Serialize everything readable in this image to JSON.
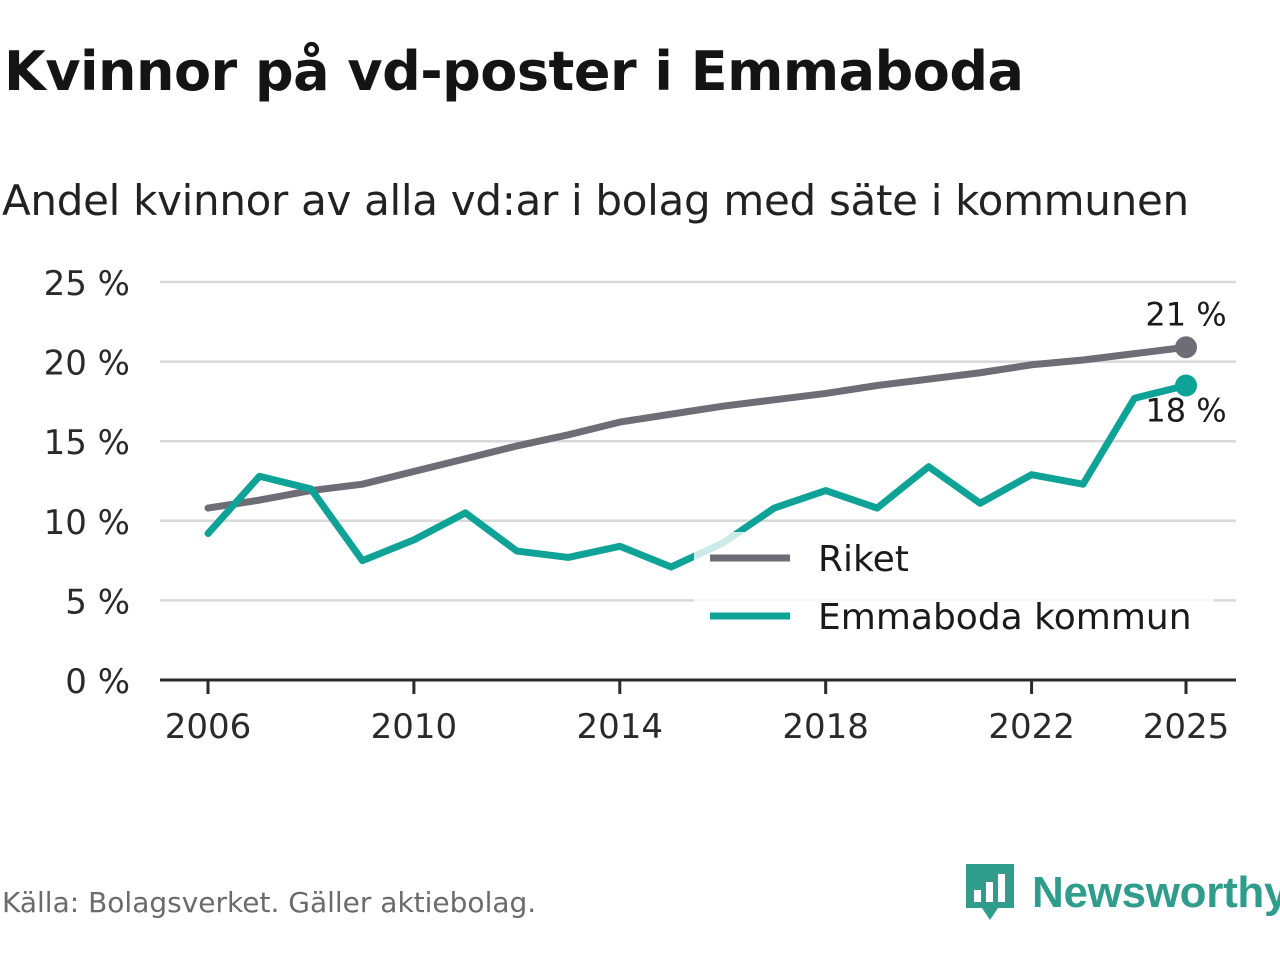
{
  "title": "Kvinnor på vd-poster i Emmaboda",
  "subtitle": "Andel kvinnor av alla vd:ar i bolag med säte i kommunen",
  "source": "Källa: Bolagsverket. Gäller aktiebolag.",
  "brand": "Newsworthy",
  "colors": {
    "riket": "#6e6d76",
    "kommun": "#0fa398",
    "brand": "#2f9c8c"
  },
  "chart_data": {
    "type": "line",
    "x": [
      2006,
      2007,
      2008,
      2009,
      2010,
      2011,
      2012,
      2013,
      2014,
      2015,
      2016,
      2017,
      2018,
      2019,
      2020,
      2021,
      2022,
      2023,
      2024,
      2025
    ],
    "series": [
      {
        "name": "Riket",
        "color": "#6e6d76",
        "values": [
          10.8,
          11.3,
          11.9,
          12.3,
          13.1,
          13.9,
          14.7,
          15.4,
          16.2,
          16.7,
          17.2,
          17.6,
          18.0,
          18.5,
          18.9,
          19.3,
          19.8,
          20.1,
          20.5,
          20.9
        ],
        "end_label": "21 %"
      },
      {
        "name": "Emmaboda kommun",
        "color": "#0fa398",
        "values": [
          9.2,
          12.8,
          12.0,
          7.5,
          8.8,
          10.5,
          8.1,
          7.7,
          8.4,
          7.1,
          8.6,
          10.8,
          11.9,
          10.8,
          13.4,
          11.1,
          12.9,
          12.3,
          17.7,
          18.5
        ],
        "end_label": "18 %"
      }
    ],
    "xticks": [
      2006,
      2010,
      2014,
      2018,
      2022,
      2025
    ],
    "xtick_labels": [
      "2006",
      "2010",
      "2014",
      "2018",
      "2022",
      "2025"
    ],
    "yticks": [
      0,
      5,
      10,
      15,
      20,
      25
    ],
    "ytick_labels": [
      "0 %",
      "5 %",
      "10 %",
      "15 %",
      "20 %",
      "25 %"
    ],
    "ylim": [
      0,
      25
    ],
    "xlim": [
      2006,
      2025
    ],
    "grid": true,
    "legend": "bottom-right"
  }
}
